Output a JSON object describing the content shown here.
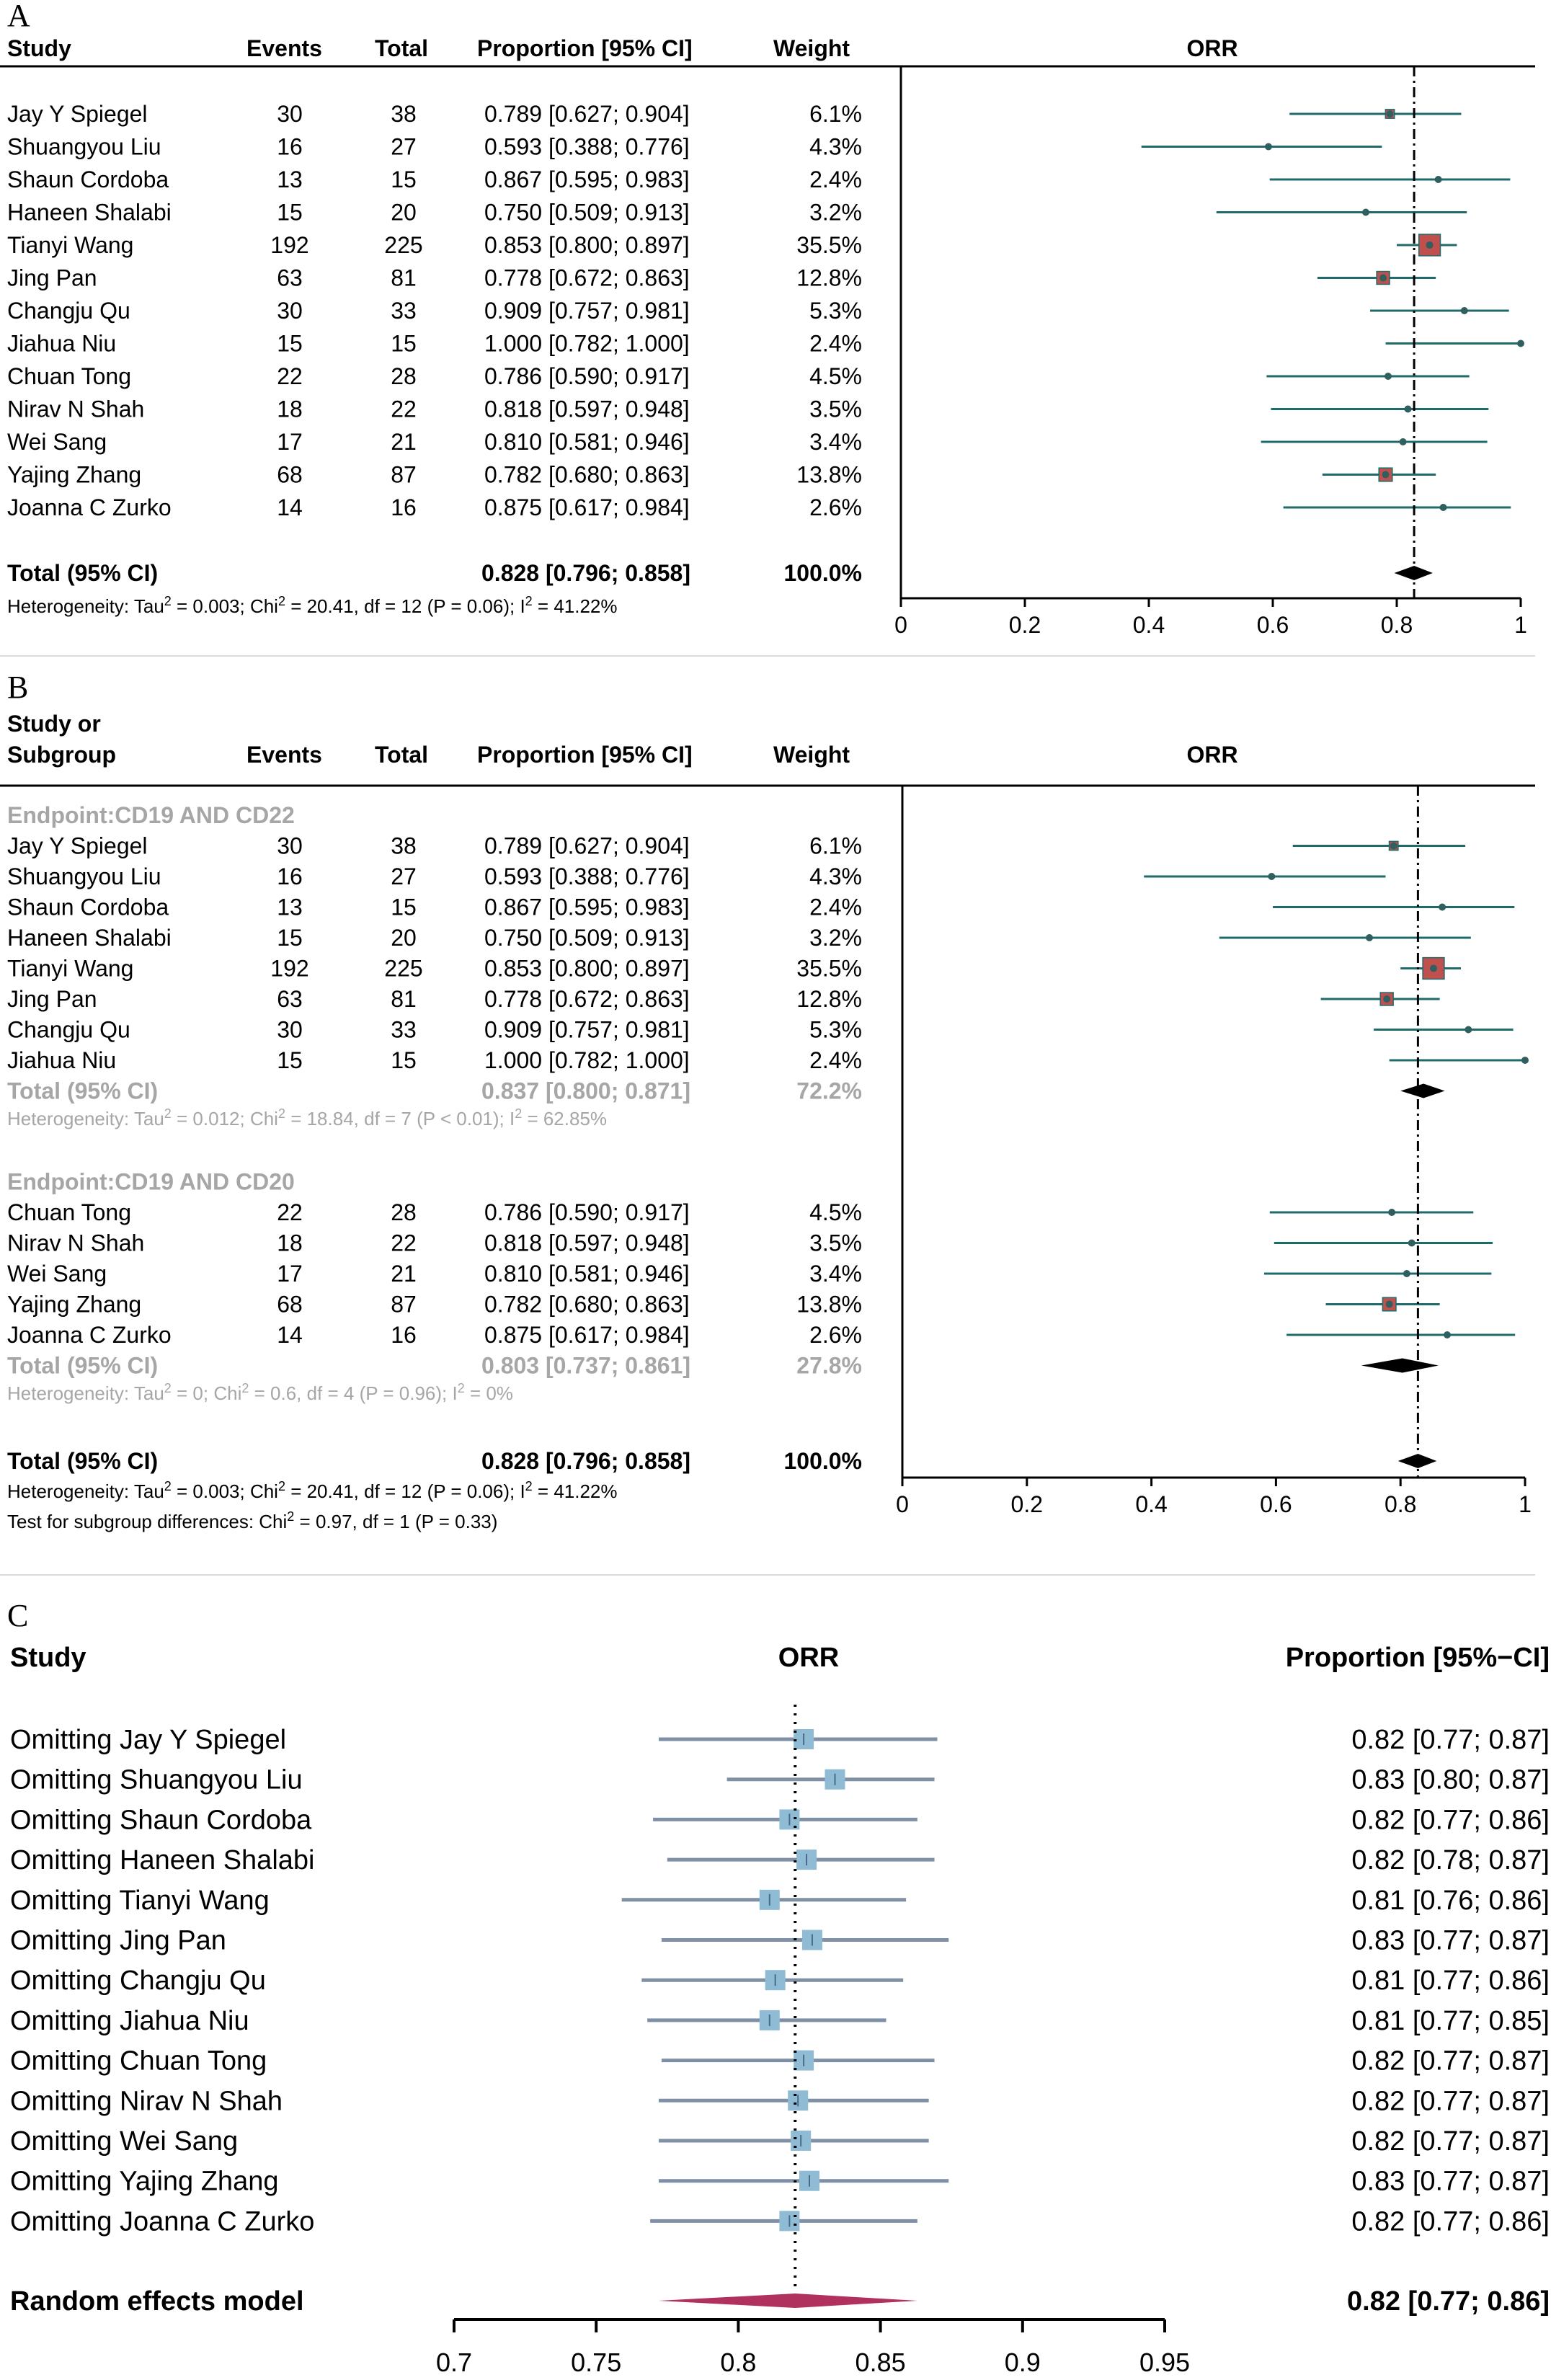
{
  "panels": {
    "A": {
      "letter": "A"
    },
    "B": {
      "letter": "B"
    },
    "C": {
      "letter": "C"
    }
  },
  "headers": {
    "study": "Study",
    "study_or": "Study or",
    "subgroup": "Subgroup",
    "events": "Events",
    "total": "Total",
    "proportion": "Proportion [95% CI]",
    "weight": "Weight",
    "orr": "ORR",
    "proportion_c": "Proportion [95%−CI]"
  },
  "chart_data": [
    {
      "type": "forest",
      "panel": "A",
      "title": "ORR",
      "xlim": [
        0,
        1
      ],
      "xticks": [
        "0",
        "0.2",
        "0.4",
        "0.6",
        "0.8",
        "1"
      ],
      "reference_line": 0.828,
      "studies": [
        {
          "study": "Jay Y Spiegel",
          "events": "30",
          "total": "38",
          "ci_text": "0.789 [0.627; 0.904]",
          "weight": "6.1%",
          "est": 0.789,
          "lo": 0.627,
          "hi": 0.904,
          "w": 6.1
        },
        {
          "study": "Shuangyou Liu",
          "events": "16",
          "total": "27",
          "ci_text": "0.593 [0.388; 0.776]",
          "weight": "4.3%",
          "est": 0.593,
          "lo": 0.388,
          "hi": 0.776,
          "w": 4.3
        },
        {
          "study": "Shaun Cordoba",
          "events": "13",
          "total": "15",
          "ci_text": "0.867 [0.595; 0.983]",
          "weight": "2.4%",
          "est": 0.867,
          "lo": 0.595,
          "hi": 0.983,
          "w": 2.4
        },
        {
          "study": "Haneen Shalabi",
          "events": "15",
          "total": "20",
          "ci_text": "0.750 [0.509; 0.913]",
          "weight": "3.2%",
          "est": 0.75,
          "lo": 0.509,
          "hi": 0.913,
          "w": 3.2
        },
        {
          "study": "Tianyi Wang",
          "events": "192",
          "total": "225",
          "ci_text": "0.853 [0.800; 0.897]",
          "weight": "35.5%",
          "est": 0.853,
          "lo": 0.8,
          "hi": 0.897,
          "w": 35.5
        },
        {
          "study": "Jing Pan",
          "events": "63",
          "total": "81",
          "ci_text": "0.778 [0.672; 0.863]",
          "weight": "12.8%",
          "est": 0.778,
          "lo": 0.672,
          "hi": 0.863,
          "w": 12.8
        },
        {
          "study": "Changju Qu",
          "events": "30",
          "total": "33",
          "ci_text": "0.909 [0.757; 0.981]",
          "weight": "5.3%",
          "est": 0.909,
          "lo": 0.757,
          "hi": 0.981,
          "w": 5.3
        },
        {
          "study": "Jiahua Niu",
          "events": "15",
          "total": "15",
          "ci_text": "1.000 [0.782; 1.000]",
          "weight": "2.4%",
          "est": 1.0,
          "lo": 0.782,
          "hi": 1.0,
          "w": 2.4
        },
        {
          "study": "Chuan Tong",
          "events": "22",
          "total": "28",
          "ci_text": "0.786 [0.590; 0.917]",
          "weight": "4.5%",
          "est": 0.786,
          "lo": 0.59,
          "hi": 0.917,
          "w": 4.5
        },
        {
          "study": "Nirav N Shah",
          "events": "18",
          "total": "22",
          "ci_text": "0.818 [0.597; 0.948]",
          "weight": "3.5%",
          "est": 0.818,
          "lo": 0.597,
          "hi": 0.948,
          "w": 3.5
        },
        {
          "study": "Wei Sang",
          "events": "17",
          "total": "21",
          "ci_text": "0.810 [0.581; 0.946]",
          "weight": "3.4%",
          "est": 0.81,
          "lo": 0.581,
          "hi": 0.946,
          "w": 3.4
        },
        {
          "study": "Yajing Zhang",
          "events": "68",
          "total": "87",
          "ci_text": "0.782 [0.680; 0.863]",
          "weight": "13.8%",
          "est": 0.782,
          "lo": 0.68,
          "hi": 0.863,
          "w": 13.8
        },
        {
          "study": "Joanna C Zurko",
          "events": "14",
          "total": "16",
          "ci_text": "0.875 [0.617; 0.984]",
          "weight": "2.6%",
          "est": 0.875,
          "lo": 0.617,
          "hi": 0.984,
          "w": 2.6
        }
      ],
      "total": {
        "label": "Total (95% CI)",
        "ci_text": "0.828 [0.796; 0.858]",
        "weight": "100.0%",
        "est": 0.828,
        "lo": 0.796,
        "hi": 0.858
      },
      "heterogeneity": {
        "prefix": "Heterogeneity: Tau",
        "mid": " = 0.003; Chi",
        "mid2": " = 20.41, df = 12 (P = 0.06); I",
        "end": " = 41.22%",
        "sup": "2"
      }
    },
    {
      "type": "forest",
      "panel": "B",
      "title": "ORR",
      "xlim": [
        0,
        1
      ],
      "xticks": [
        "0",
        "0.2",
        "0.4",
        "0.6",
        "0.8",
        "1"
      ],
      "reference_line": 0.828,
      "subgroups": [
        {
          "label": "Endpoint:CD19 AND CD22",
          "studies": [
            {
              "study": "Jay Y Spiegel",
              "events": "30",
              "total": "38",
              "ci_text": "0.789 [0.627; 0.904]",
              "weight": "6.1%",
              "est": 0.789,
              "lo": 0.627,
              "hi": 0.904,
              "w": 6.1
            },
            {
              "study": "Shuangyou Liu",
              "events": "16",
              "total": "27",
              "ci_text": "0.593 [0.388; 0.776]",
              "weight": "4.3%",
              "est": 0.593,
              "lo": 0.388,
              "hi": 0.776,
              "w": 4.3
            },
            {
              "study": "Shaun Cordoba",
              "events": "13",
              "total": "15",
              "ci_text": "0.867 [0.595; 0.983]",
              "weight": "2.4%",
              "est": 0.867,
              "lo": 0.595,
              "hi": 0.983,
              "w": 2.4
            },
            {
              "study": "Haneen Shalabi",
              "events": "15",
              "total": "20",
              "ci_text": "0.750 [0.509; 0.913]",
              "weight": "3.2%",
              "est": 0.75,
              "lo": 0.509,
              "hi": 0.913,
              "w": 3.2
            },
            {
              "study": "Tianyi Wang",
              "events": "192",
              "total": "225",
              "ci_text": "0.853 [0.800; 0.897]",
              "weight": "35.5%",
              "est": 0.853,
              "lo": 0.8,
              "hi": 0.897,
              "w": 35.5
            },
            {
              "study": "Jing Pan",
              "events": "63",
              "total": "81",
              "ci_text": "0.778 [0.672; 0.863]",
              "weight": "12.8%",
              "est": 0.778,
              "lo": 0.672,
              "hi": 0.863,
              "w": 12.8
            },
            {
              "study": "Changju Qu",
              "events": "30",
              "total": "33",
              "ci_text": "0.909 [0.757; 0.981]",
              "weight": "5.3%",
              "est": 0.909,
              "lo": 0.757,
              "hi": 0.981,
              "w": 5.3
            },
            {
              "study": "Jiahua Niu",
              "events": "15",
              "total": "15",
              "ci_text": "1.000 [0.782; 1.000]",
              "weight": "2.4%",
              "est": 1.0,
              "lo": 0.782,
              "hi": 1.0,
              "w": 2.4
            }
          ],
          "total": {
            "label": "Total (95% CI)",
            "ci_text": "0.837 [0.800; 0.871]",
            "weight": "72.2%",
            "est": 0.837,
            "lo": 0.8,
            "hi": 0.871
          },
          "heterogeneity": {
            "prefix": "Heterogeneity: Tau",
            "mid": " = 0.012; Chi",
            "mid2": " = 18.84, df = 7 (P < 0.01); I",
            "end": " = 62.85%",
            "sup": "2"
          }
        },
        {
          "label": "Endpoint:CD19 AND CD20",
          "studies": [
            {
              "study": "Chuan Tong",
              "events": "22",
              "total": "28",
              "ci_text": "0.786 [0.590; 0.917]",
              "weight": "4.5%",
              "est": 0.786,
              "lo": 0.59,
              "hi": 0.917,
              "w": 4.5
            },
            {
              "study": "Nirav N Shah",
              "events": "18",
              "total": "22",
              "ci_text": "0.818 [0.597; 0.948]",
              "weight": "3.5%",
              "est": 0.818,
              "lo": 0.597,
              "hi": 0.948,
              "w": 3.5
            },
            {
              "study": "Wei Sang",
              "events": "17",
              "total": "21",
              "ci_text": "0.810 [0.581; 0.946]",
              "weight": "3.4%",
              "est": 0.81,
              "lo": 0.581,
              "hi": 0.946,
              "w": 3.4
            },
            {
              "study": "Yajing Zhang",
              "events": "68",
              "total": "87",
              "ci_text": "0.782 [0.680; 0.863]",
              "weight": "13.8%",
              "est": 0.782,
              "lo": 0.68,
              "hi": 0.863,
              "w": 13.8
            },
            {
              "study": "Joanna C Zurko",
              "events": "14",
              "total": "16",
              "ci_text": "0.875 [0.617; 0.984]",
              "weight": "2.6%",
              "est": 0.875,
              "lo": 0.617,
              "hi": 0.984,
              "w": 2.6
            }
          ],
          "total": {
            "label": "Total (95% CI)",
            "ci_text": "0.803 [0.737; 0.861]",
            "weight": "27.8%",
            "est": 0.803,
            "lo": 0.737,
            "hi": 0.861
          },
          "heterogeneity": {
            "prefix": "Heterogeneity: Tau",
            "mid": " = 0; Chi",
            "mid2": " = 0.6, df = 4 (P = 0.96); I",
            "end": " = 0%",
            "sup": "2"
          }
        }
      ],
      "total": {
        "label": "Total (95% CI)",
        "ci_text": "0.828 [0.796; 0.858]",
        "weight": "100.0%",
        "est": 0.828,
        "lo": 0.796,
        "hi": 0.858
      },
      "heterogeneity": {
        "prefix": "Heterogeneity: Tau",
        "mid": " = 0.003; Chi",
        "mid2": " = 20.41, df = 12 (P = 0.06); I",
        "end": " = 41.22%",
        "sup": "2"
      },
      "subgroup_test": {
        "prefix": "Test for subgroup differences: Chi",
        "end": " = 0.97, df = 1 (P = 0.33)",
        "sup": "2"
      }
    },
    {
      "type": "forest",
      "panel": "C",
      "title": "ORR",
      "xlim": [
        0.7,
        0.95
      ],
      "xticks": [
        "0.7",
        "0.75",
        "0.8",
        "0.85",
        "0.9",
        "0.95"
      ],
      "reference_line": 0.82,
      "studies": [
        {
          "study": "Omitting Jay Y Spiegel",
          "ci_text": "0.82 [0.77; 0.87]",
          "est": 0.823,
          "lo": 0.772,
          "hi": 0.87
        },
        {
          "study": "Omitting Shuangyou Liu",
          "ci_text": "0.83 [0.80; 0.87]",
          "est": 0.834,
          "lo": 0.796,
          "hi": 0.869
        },
        {
          "study": "Omitting Shaun Cordoba",
          "ci_text": "0.82 [0.77; 0.86]",
          "est": 0.818,
          "lo": 0.77,
          "hi": 0.863
        },
        {
          "study": "Omitting Haneen Shalabi",
          "ci_text": "0.82 [0.78; 0.87]",
          "est": 0.824,
          "lo": 0.775,
          "hi": 0.869
        },
        {
          "study": "Omitting Tianyi Wang",
          "ci_text": "0.81 [0.76; 0.86]",
          "est": 0.811,
          "lo": 0.759,
          "hi": 0.859
        },
        {
          "study": "Omitting Jing Pan",
          "ci_text": "0.83 [0.77; 0.87]",
          "est": 0.826,
          "lo": 0.773,
          "hi": 0.874
        },
        {
          "study": "Omitting Changju Qu",
          "ci_text": "0.81 [0.77; 0.86]",
          "est": 0.813,
          "lo": 0.766,
          "hi": 0.858
        },
        {
          "study": "Omitting Jiahua Niu",
          "ci_text": "0.81 [0.77; 0.85]",
          "est": 0.811,
          "lo": 0.768,
          "hi": 0.852
        },
        {
          "study": "Omitting Chuan Tong",
          "ci_text": "0.82 [0.77; 0.87]",
          "est": 0.823,
          "lo": 0.773,
          "hi": 0.869
        },
        {
          "study": "Omitting Nirav N Shah",
          "ci_text": "0.82 [0.77; 0.87]",
          "est": 0.821,
          "lo": 0.772,
          "hi": 0.867
        },
        {
          "study": "Omitting Wei Sang",
          "ci_text": "0.82 [0.77; 0.87]",
          "est": 0.822,
          "lo": 0.772,
          "hi": 0.867
        },
        {
          "study": "Omitting Yajing Zhang",
          "ci_text": "0.83 [0.77; 0.87]",
          "est": 0.825,
          "lo": 0.772,
          "hi": 0.874
        },
        {
          "study": "Omitting Joanna C Zurko",
          "ci_text": "0.82 [0.77; 0.86]",
          "est": 0.818,
          "lo": 0.769,
          "hi": 0.863
        }
      ],
      "total": {
        "label": "Random effects model",
        "ci_text": "0.82 [0.77; 0.86]",
        "est": 0.82,
        "lo": 0.772,
        "hi": 0.863
      }
    }
  ],
  "colors": {
    "ci_line_ab": "#1f6b6b",
    "box_fill_ab": "#c0504d",
    "point_ab": "#2f5f5f",
    "ci_line_c": "#7f8fa6",
    "box_fill_c": "#8fbcd4",
    "diamond_c": "#b0305e",
    "grey_text": "#a6a6a6"
  }
}
